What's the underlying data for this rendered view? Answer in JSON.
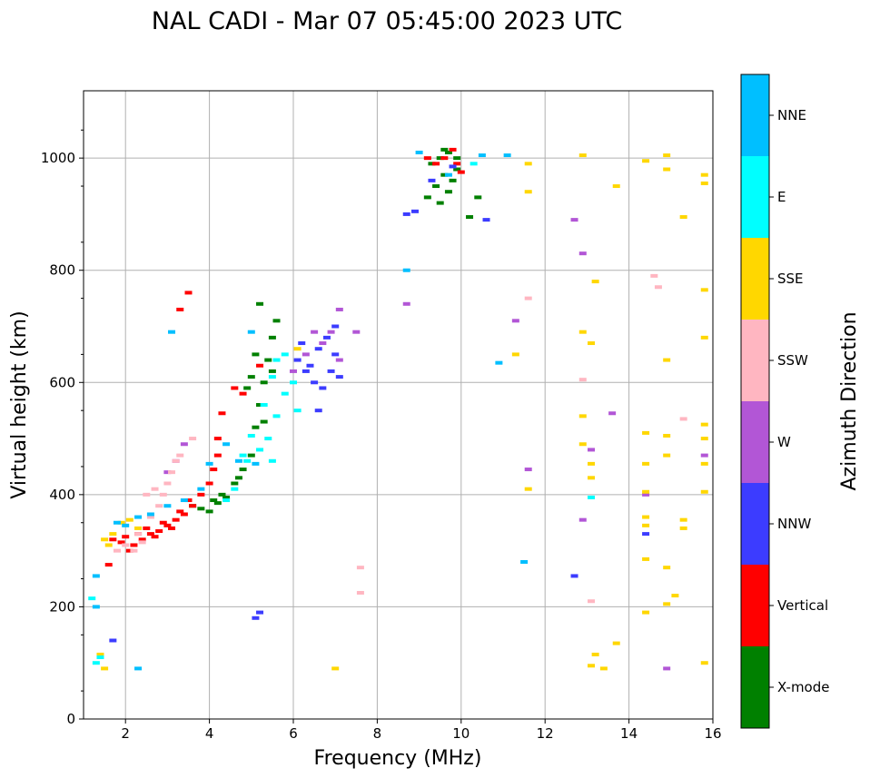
{
  "chart_data": {
    "type": "scatter",
    "title": "NAL CADI - Mar 07 05:45:00 2023 UTC",
    "xlabel": "Frequency (MHz)",
    "ylabel": "Virtual height (km)",
    "xlim": [
      1,
      16
    ],
    "ylim": [
      0,
      1120
    ],
    "xticks": [
      2,
      4,
      6,
      8,
      10,
      12,
      14,
      16
    ],
    "yticks": [
      0,
      200,
      400,
      600,
      800,
      1000
    ],
    "grid": true,
    "colorbar": {
      "title": "Azimuth Direction",
      "categories": [
        {
          "name": "X-mode",
          "color": "#008000"
        },
        {
          "name": "Vertical",
          "color": "#ff0000"
        },
        {
          "name": "NNW",
          "color": "#3c3cff"
        },
        {
          "name": "W",
          "color": "#b256d6"
        },
        {
          "name": "SSW",
          "color": "#ffb6c1"
        },
        {
          "name": "SSE",
          "color": "#ffd700"
        },
        {
          "name": "E",
          "color": "#00ffff"
        },
        {
          "name": "NNE",
          "color": "#00bfff"
        }
      ]
    },
    "series": [
      {
        "name": "X-mode",
        "color": "#008000",
        "points": [
          [
            3.6,
            380
          ],
          [
            3.8,
            375
          ],
          [
            4.0,
            370
          ],
          [
            4.2,
            385
          ],
          [
            4.4,
            395
          ],
          [
            4.6,
            420
          ],
          [
            4.8,
            445
          ],
          [
            5.0,
            470
          ],
          [
            4.1,
            390
          ],
          [
            4.3,
            400
          ],
          [
            4.7,
            430
          ],
          [
            5.1,
            520
          ],
          [
            5.2,
            560
          ],
          [
            5.3,
            600
          ],
          [
            5.4,
            640
          ],
          [
            5.5,
            680
          ],
          [
            5.6,
            710
          ],
          [
            5.2,
            740
          ],
          [
            5.0,
            610
          ],
          [
            5.1,
            650
          ],
          [
            4.9,
            590
          ],
          [
            5.3,
            530
          ],
          [
            5.5,
            620
          ],
          [
            9.3,
            990
          ],
          [
            9.5,
            1000
          ],
          [
            9.7,
            1010
          ],
          [
            9.9,
            1000
          ],
          [
            9.6,
            970
          ],
          [
            9.8,
            960
          ],
          [
            9.4,
            950
          ],
          [
            9.2,
            930
          ],
          [
            9.5,
            920
          ],
          [
            10.2,
            895
          ],
          [
            9.7,
            940
          ],
          [
            9.9,
            980
          ],
          [
            9.6,
            1015
          ],
          [
            10.4,
            930
          ]
        ]
      },
      {
        "name": "Vertical",
        "color": "#ff0000",
        "points": [
          [
            1.7,
            320
          ],
          [
            1.9,
            315
          ],
          [
            2.0,
            325
          ],
          [
            2.2,
            310
          ],
          [
            2.4,
            320
          ],
          [
            2.6,
            330
          ],
          [
            2.8,
            335
          ],
          [
            3.0,
            345
          ],
          [
            3.2,
            355
          ],
          [
            3.4,
            365
          ],
          [
            3.6,
            380
          ],
          [
            3.8,
            400
          ],
          [
            4.0,
            420
          ],
          [
            4.1,
            445
          ],
          [
            4.2,
            470
          ],
          [
            4.2,
            500
          ],
          [
            2.1,
            300
          ],
          [
            2.3,
            330
          ],
          [
            2.5,
            340
          ],
          [
            2.7,
            325
          ],
          [
            2.9,
            350
          ],
          [
            3.1,
            340
          ],
          [
            3.3,
            370
          ],
          [
            3.5,
            390
          ],
          [
            4.3,
            545
          ],
          [
            4.6,
            590
          ],
          [
            5.2,
            630
          ],
          [
            3.5,
            760
          ],
          [
            3.3,
            730
          ],
          [
            1.6,
            275
          ],
          [
            9.6,
            1000
          ],
          [
            9.9,
            990
          ],
          [
            9.4,
            990
          ],
          [
            10.0,
            975
          ],
          [
            9.2,
            1000
          ],
          [
            9.8,
            1015
          ],
          [
            4.8,
            580
          ]
        ]
      },
      {
        "name": "NNW",
        "color": "#3c3cff",
        "points": [
          [
            6.4,
            630
          ],
          [
            6.6,
            660
          ],
          [
            6.8,
            680
          ],
          [
            7.0,
            650
          ],
          [
            6.5,
            600
          ],
          [
            6.7,
            590
          ],
          [
            6.9,
            620
          ],
          [
            6.2,
            670
          ],
          [
            6.3,
            620
          ],
          [
            7.1,
            610
          ],
          [
            6.6,
            550
          ],
          [
            7.0,
            700
          ],
          [
            6.1,
            640
          ],
          [
            8.7,
            900
          ],
          [
            8.9,
            905
          ],
          [
            10.6,
            890
          ],
          [
            12.7,
            255
          ],
          [
            14.4,
            330
          ],
          [
            5.2,
            190
          ],
          [
            5.1,
            180
          ],
          [
            1.7,
            140
          ],
          [
            9.3,
            960
          ],
          [
            9.8,
            985
          ]
        ]
      },
      {
        "name": "W",
        "color": "#b256d6",
        "points": [
          [
            6.5,
            690
          ],
          [
            6.7,
            670
          ],
          [
            6.9,
            690
          ],
          [
            7.1,
            640
          ],
          [
            6.3,
            650
          ],
          [
            6.0,
            620
          ],
          [
            7.1,
            730
          ],
          [
            7.5,
            690
          ],
          [
            3.0,
            440
          ],
          [
            3.2,
            460
          ],
          [
            3.4,
            490
          ],
          [
            8.7,
            740
          ],
          [
            12.7,
            890
          ],
          [
            12.9,
            830
          ],
          [
            13.1,
            480
          ],
          [
            12.9,
            355
          ],
          [
            14.4,
            400
          ],
          [
            14.9,
            90
          ],
          [
            13.6,
            545
          ],
          [
            15.8,
            470
          ],
          [
            11.3,
            710
          ],
          [
            11.6,
            445
          ]
        ]
      },
      {
        "name": "SSW",
        "color": "#ffb6c1",
        "points": [
          [
            1.8,
            300
          ],
          [
            2.0,
            310
          ],
          [
            2.2,
            300
          ],
          [
            2.4,
            315
          ],
          [
            2.6,
            360
          ],
          [
            2.8,
            380
          ],
          [
            3.0,
            420
          ],
          [
            3.2,
            460
          ],
          [
            2.5,
            400
          ],
          [
            2.7,
            410
          ],
          [
            2.9,
            400
          ],
          [
            3.1,
            440
          ],
          [
            3.3,
            470
          ],
          [
            3.6,
            500
          ],
          [
            2.3,
            330
          ],
          [
            12.9,
            605
          ],
          [
            14.6,
            790
          ],
          [
            14.7,
            770
          ],
          [
            15.3,
            535
          ],
          [
            7.6,
            270
          ],
          [
            7.6,
            225
          ],
          [
            11.6,
            750
          ],
          [
            13.1,
            210
          ]
        ]
      },
      {
        "name": "SSE",
        "color": "#ffd700",
        "points": [
          [
            1.5,
            320
          ],
          [
            1.7,
            330
          ],
          [
            1.9,
            350
          ],
          [
            2.1,
            355
          ],
          [
            2.3,
            340
          ],
          [
            1.6,
            310
          ],
          [
            1.4,
            115
          ],
          [
            1.5,
            90
          ],
          [
            12.9,
            690
          ],
          [
            13.1,
            670
          ],
          [
            13.2,
            780
          ],
          [
            12.9,
            540
          ],
          [
            12.9,
            490
          ],
          [
            13.1,
            455
          ],
          [
            13.1,
            430
          ],
          [
            13.2,
            115
          ],
          [
            13.1,
            95
          ],
          [
            13.4,
            90
          ],
          [
            13.7,
            135
          ],
          [
            14.4,
            510
          ],
          [
            14.4,
            455
          ],
          [
            14.4,
            405
          ],
          [
            14.4,
            360
          ],
          [
            14.4,
            345
          ],
          [
            14.4,
            285
          ],
          [
            14.4,
            190
          ],
          [
            14.9,
            640
          ],
          [
            14.9,
            505
          ],
          [
            14.9,
            470
          ],
          [
            14.9,
            270
          ],
          [
            14.9,
            205
          ],
          [
            15.1,
            220
          ],
          [
            15.3,
            355
          ],
          [
            15.3,
            340
          ],
          [
            15.8,
            680
          ],
          [
            15.8,
            525
          ],
          [
            15.8,
            500
          ],
          [
            15.8,
            455
          ],
          [
            15.8,
            405
          ],
          [
            15.8,
            100
          ],
          [
            15.8,
            970
          ],
          [
            15.8,
            955
          ],
          [
            15.8,
            765
          ],
          [
            14.9,
            1005
          ],
          [
            14.9,
            980
          ],
          [
            14.4,
            995
          ],
          [
            13.7,
            950
          ],
          [
            12.9,
            1005
          ],
          [
            15.3,
            895
          ],
          [
            11.6,
            410
          ],
          [
            11.6,
            990
          ],
          [
            11.6,
            940
          ],
          [
            11.3,
            650
          ],
          [
            6.1,
            660
          ],
          [
            7.0,
            90
          ]
        ]
      },
      {
        "name": "E",
        "color": "#00ffff",
        "points": [
          [
            4.4,
            390
          ],
          [
            4.6,
            410
          ],
          [
            4.8,
            470
          ],
          [
            5.0,
            505
          ],
          [
            5.2,
            480
          ],
          [
            5.4,
            500
          ],
          [
            5.6,
            540
          ],
          [
            5.8,
            580
          ],
          [
            5.5,
            610
          ],
          [
            5.6,
            640
          ],
          [
            5.3,
            560
          ],
          [
            5.8,
            650
          ],
          [
            6.0,
            600
          ],
          [
            6.1,
            550
          ],
          [
            4.9,
            460
          ],
          [
            5.5,
            460
          ],
          [
            1.3,
            100
          ],
          [
            1.4,
            110
          ],
          [
            10.3,
            990
          ],
          [
            13.1,
            395
          ],
          [
            1.2,
            215
          ]
        ]
      },
      {
        "name": "NNE",
        "color": "#00bfff",
        "points": [
          [
            1.8,
            350
          ],
          [
            2.0,
            345
          ],
          [
            2.3,
            360
          ],
          [
            2.6,
            365
          ],
          [
            3.0,
            380
          ],
          [
            3.4,
            390
          ],
          [
            3.8,
            410
          ],
          [
            4.0,
            455
          ],
          [
            4.4,
            490
          ],
          [
            4.7,
            460
          ],
          [
            5.1,
            455
          ],
          [
            5.0,
            690
          ],
          [
            3.1,
            690
          ],
          [
            2.3,
            90
          ],
          [
            1.3,
            200
          ],
          [
            1.3,
            255
          ],
          [
            8.7,
            800
          ],
          [
            9.0,
            1010
          ],
          [
            10.5,
            1005
          ],
          [
            10.9,
            635
          ],
          [
            11.5,
            280
          ],
          [
            11.1,
            1005
          ],
          [
            9.7,
            970
          ]
        ]
      }
    ]
  }
}
